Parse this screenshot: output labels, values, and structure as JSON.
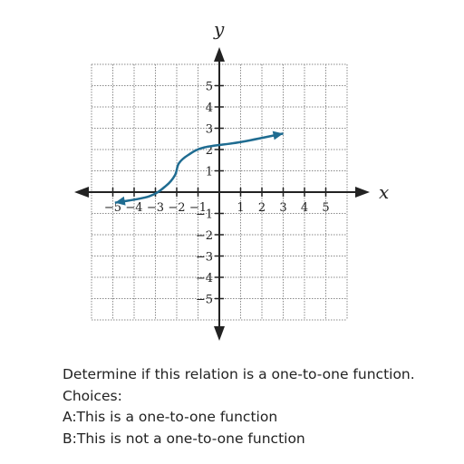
{
  "graph": {
    "x_axis_label": "x",
    "y_axis_label": "y",
    "x_tick_labels": [
      "−5",
      "−4",
      "−3",
      "−2",
      "−1",
      "1",
      "2",
      "3",
      "4",
      "5"
    ],
    "y_tick_labels": [
      "5",
      "4",
      "3",
      "2",
      "1",
      "−1",
      "−2",
      "−3",
      "−4",
      "−5"
    ],
    "curve_color": "#1f6c91",
    "curve_points": [
      [
        -4.9,
        -0.5
      ],
      [
        -3.3,
        -0.2
      ],
      [
        -2.5,
        0.3
      ],
      [
        -2.08,
        0.8
      ],
      [
        -1.9,
        1.35
      ],
      [
        -1.45,
        1.75
      ],
      [
        -0.7,
        2.1
      ],
      [
        1,
        2.35
      ],
      [
        3,
        2.75
      ]
    ]
  },
  "question": {
    "prompt": "Determine if this relation is a one-to-one function.",
    "choices_heading": "Choices:",
    "choice_a": "A:This is a one-to-one function",
    "choice_b": "B:This is not a one-to-one function"
  }
}
